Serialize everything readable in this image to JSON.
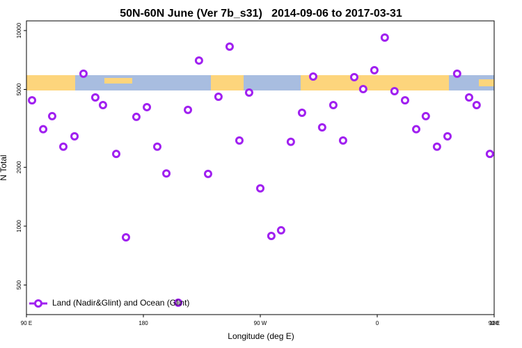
{
  "chart_data": {
    "type": "scatter",
    "title": "50N-60N June (Ver 7b_s31)   2014-09-06 to 2017-03-31",
    "x_label": "Longitude (deg E)",
    "y_label": "N Total",
    "log_y": true,
    "legend": "bottomleft",
    "xlim": [
      90,
      450
    ],
    "xticks": [
      {
        "value": 90,
        "label": "90 E"
      },
      {
        "value": 180,
        "label": "180"
      },
      {
        "value": 270,
        "label": "90 W"
      },
      {
        "value": 360,
        "label": "0"
      },
      {
        "value": 450,
        "label": "90 E"
      },
      {
        "value": 540,
        "label": "180"
      }
    ],
    "ylim": [
      353,
      11210
    ],
    "yticks": [
      500,
      1000,
      2000,
      5000,
      10000
    ],
    "series": [
      {
        "name": "Land (Nadir&Glint) and Ocean (Glint)",
        "color": "#a020f0",
        "x": [
          94.3,
          102.9,
          109.8,
          118.4,
          127.0,
          133.9,
          143.0,
          148.9,
          159.1,
          166.6,
          174.6,
          182.7,
          190.7,
          197.7,
          206.8,
          214.3,
          222.8,
          229.8,
          237.8,
          246.4,
          253.9,
          261.4,
          270.0,
          278.5,
          286.0,
          293.5,
          302.1,
          310.7,
          317.6,
          326.2,
          333.7,
          342.3,
          349.2,
          357.8,
          365.8,
          373.3,
          381.4,
          390.0,
          397.4,
          406.0,
          414.1,
          421.5,
          430.7,
          436.5,
          446.7
        ],
        "values": [
          4400,
          3130,
          3650,
          2550,
          2880,
          6020,
          4550,
          4160,
          2340,
          877,
          3620,
          4060,
          2550,
          1860,
          406,
          3930,
          7030,
          1850,
          4590,
          8280,
          2740,
          4820,
          1560,
          891,
          952,
          2700,
          3800,
          5820,
          3200,
          4160,
          2740,
          5780,
          5020,
          6270,
          9210,
          4900,
          4400,
          3130,
          3650,
          2550,
          2880,
          6020,
          4550,
          4160,
          2340
        ]
      }
    ]
  }
}
